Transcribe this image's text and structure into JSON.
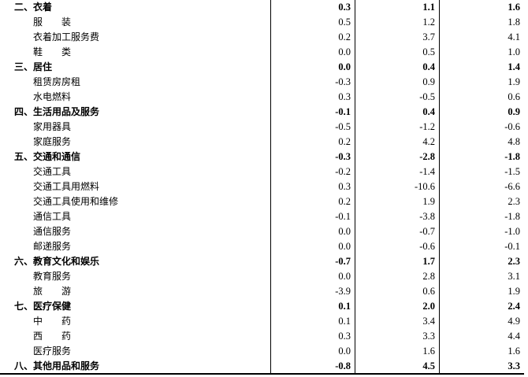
{
  "table": {
    "rows": [
      {
        "label": "二、衣着",
        "bold": true,
        "values": [
          "0.3",
          "1.1",
          "1.6"
        ]
      },
      {
        "label": "服　　装",
        "bold": false,
        "values": [
          "0.5",
          "1.2",
          "1.8"
        ]
      },
      {
        "label": "衣着加工服务费",
        "bold": false,
        "values": [
          "0.2",
          "3.7",
          "4.1"
        ]
      },
      {
        "label": "鞋　　类",
        "bold": false,
        "values": [
          "0.0",
          "0.5",
          "1.0"
        ]
      },
      {
        "label": "三、居住",
        "bold": true,
        "values": [
          "0.0",
          "0.4",
          "1.4"
        ]
      },
      {
        "label": "租赁房房租",
        "bold": false,
        "values": [
          "-0.3",
          "0.9",
          "1.9"
        ]
      },
      {
        "label": "水电燃料",
        "bold": false,
        "values": [
          "0.3",
          "-0.5",
          "0.6"
        ]
      },
      {
        "label": "四、生活用品及服务",
        "bold": true,
        "values": [
          "-0.1",
          "0.4",
          "0.9"
        ]
      },
      {
        "label": "家用器具",
        "bold": false,
        "values": [
          "-0.5",
          "-1.2",
          "-0.6"
        ]
      },
      {
        "label": "家庭服务",
        "bold": false,
        "values": [
          "0.2",
          "4.2",
          "4.8"
        ]
      },
      {
        "label": "五、交通和通信",
        "bold": true,
        "values": [
          "-0.3",
          "-2.8",
          "-1.8"
        ]
      },
      {
        "label": "交通工具",
        "bold": false,
        "values": [
          "-0.2",
          "-1.4",
          "-1.5"
        ]
      },
      {
        "label": "交通工具用燃料",
        "bold": false,
        "values": [
          "0.3",
          "-10.6",
          "-6.6"
        ]
      },
      {
        "label": "交通工具使用和维修",
        "bold": false,
        "values": [
          "0.2",
          "1.9",
          "2.3"
        ]
      },
      {
        "label": "通信工具",
        "bold": false,
        "values": [
          "-0.1",
          "-3.8",
          "-1.8"
        ]
      },
      {
        "label": "通信服务",
        "bold": false,
        "values": [
          "0.0",
          "-0.7",
          "-1.0"
        ]
      },
      {
        "label": "邮递服务",
        "bold": false,
        "values": [
          "0.0",
          "-0.6",
          "-0.1"
        ]
      },
      {
        "label": "六、教育文化和娱乐",
        "bold": true,
        "values": [
          "-0.7",
          "1.7",
          "2.3"
        ]
      },
      {
        "label": "教育服务",
        "bold": false,
        "values": [
          "0.0",
          "2.8",
          "3.1"
        ]
      },
      {
        "label": "旅　　游",
        "bold": false,
        "values": [
          "-3.9",
          "0.6",
          "1.9"
        ]
      },
      {
        "label": "七、医疗保健",
        "bold": true,
        "values": [
          "0.1",
          "2.0",
          "2.4"
        ]
      },
      {
        "label": "中　　药",
        "bold": false,
        "values": [
          "0.1",
          "3.4",
          "4.9"
        ]
      },
      {
        "label": "西　　药",
        "bold": false,
        "values": [
          "0.3",
          "3.3",
          "4.4"
        ]
      },
      {
        "label": "医疗服务",
        "bold": false,
        "values": [
          "0.0",
          "1.6",
          "1.6"
        ]
      },
      {
        "label": "八、其他用品和服务",
        "bold": true,
        "values": [
          "-0.8",
          "4.5",
          "3.3"
        ]
      }
    ]
  }
}
